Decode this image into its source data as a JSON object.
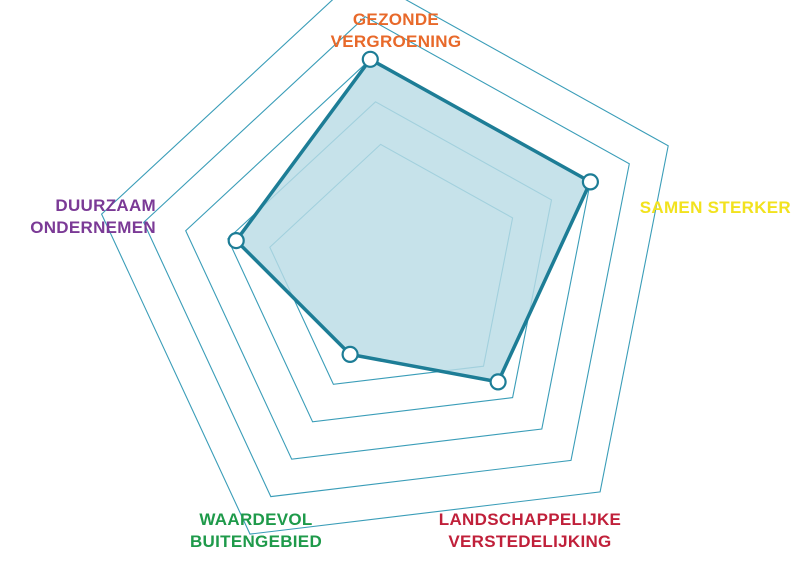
{
  "chart_data": {
    "type": "radar",
    "title": "",
    "axes": [
      {
        "label_lines": [
          "GEZONDE",
          "VERGROENING"
        ],
        "color": "#e8692a",
        "value": 5
      },
      {
        "label_lines": [
          "SAMEN STERKER"
        ],
        "color": "#f2e21e",
        "value": 5
      },
      {
        "label_lines": [
          "LANDSCHAPPELIJKE",
          "VERSTEDELIJKING"
        ],
        "color": "#c0203a",
        "value": 3.5
      },
      {
        "label_lines": [
          "WAARDEVOL",
          "BUITENGEBIED"
        ],
        "color": "#1e9a4a",
        "value": 2.2
      },
      {
        "label_lines": [
          "DUURZAAM",
          "ONDERNEMEN"
        ],
        "color": "#7b3a96",
        "value": 3.8
      }
    ],
    "scale": {
      "min": 0,
      "max": 7,
      "rings": [
        1,
        2,
        3,
        4,
        5,
        6,
        7
      ],
      "marked_levels": [
        3,
        4,
        5,
        6,
        7
      ]
    },
    "series_color": "#1d7d96",
    "fill_color": "#b9dce5",
    "grid_color": "#3a9db8",
    "grid": true,
    "legend": "none"
  }
}
